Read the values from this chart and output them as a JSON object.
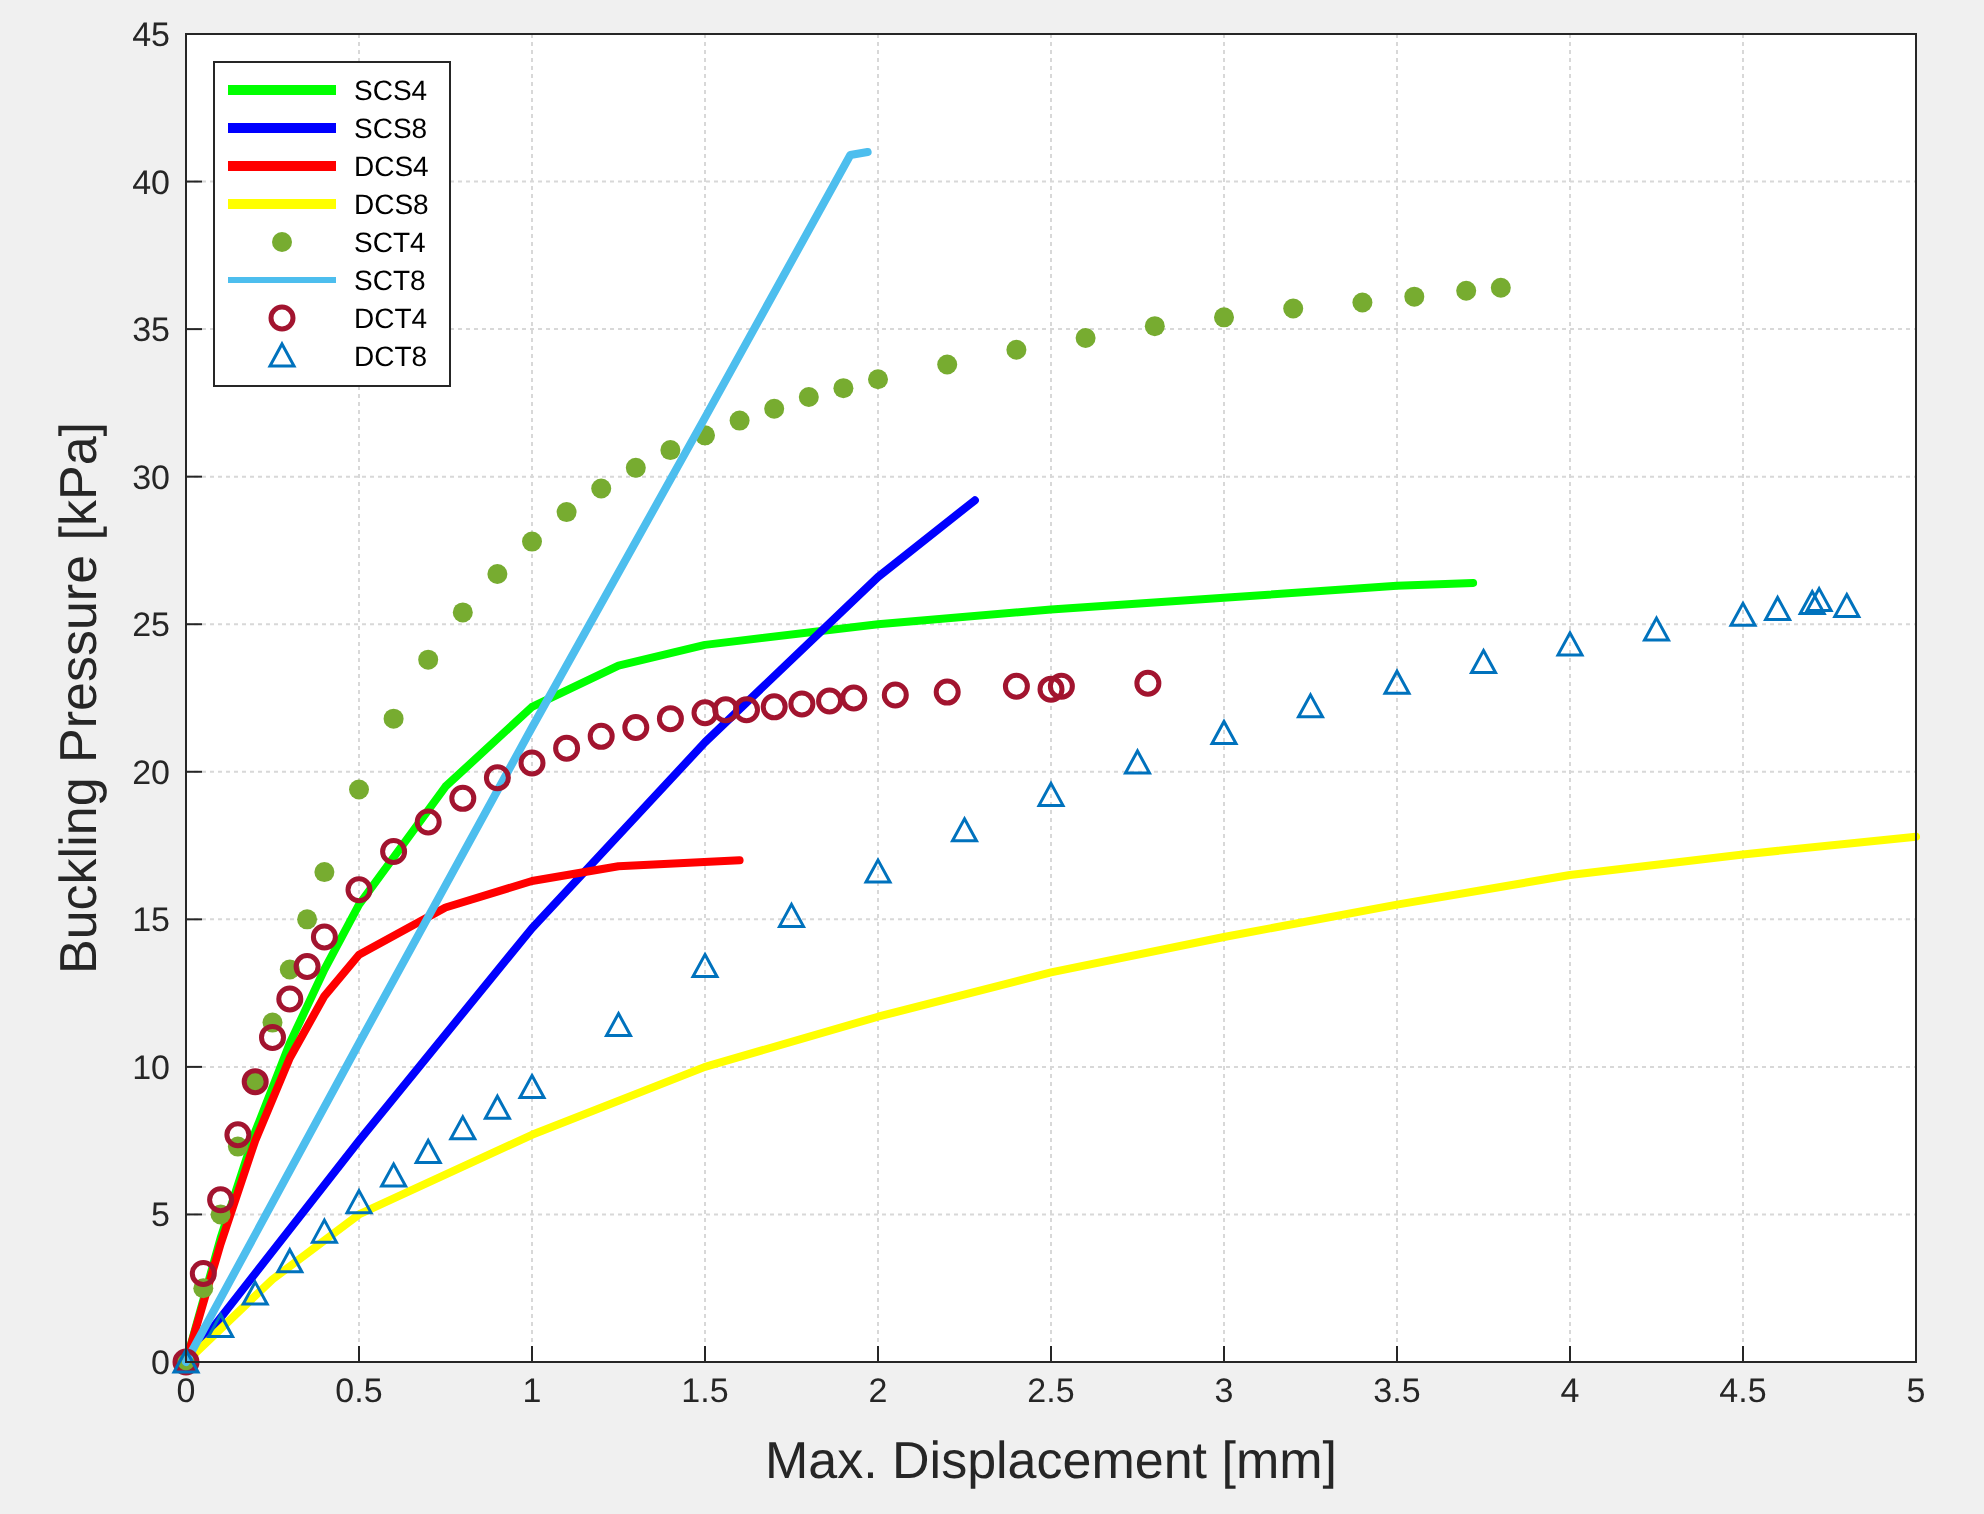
{
  "chart_data": {
    "type": "line",
    "xlabel": "Max. Displacement [mm]",
    "ylabel": "Buckling Pressure [kPa]",
    "xlim": [
      0,
      5
    ],
    "ylim": [
      0,
      45
    ],
    "xticks": [
      0,
      0.5,
      1,
      1.5,
      2,
      2.5,
      3,
      3.5,
      4,
      4.5,
      5
    ],
    "yticks": [
      0,
      5,
      10,
      15,
      20,
      25,
      30,
      35,
      40,
      45
    ],
    "grid": true,
    "legend": "top left",
    "line_style": "solid",
    "series": [
      {
        "name": "SCS4",
        "color": "#00ff00",
        "marker": "none",
        "x": [
          0,
          0.1,
          0.2,
          0.3,
          0.4,
          0.5,
          0.75,
          1,
          1.25,
          1.5,
          2,
          2.5,
          3,
          3.5,
          3.72
        ],
        "values": [
          0,
          4.2,
          7.8,
          10.8,
          13.3,
          15.5,
          19.5,
          22.2,
          23.6,
          24.3,
          25,
          25.5,
          25.9,
          26.3,
          26.4
        ]
      },
      {
        "name": "SCS8",
        "color": "#0000ff",
        "marker": "none",
        "x": [
          0,
          0.5,
          1,
          1.5,
          2,
          2.28
        ],
        "values": [
          0,
          7.5,
          14.7,
          21,
          26.6,
          29.2
        ]
      },
      {
        "name": "DCS4",
        "color": "#ff0000",
        "marker": "none",
        "x": [
          0,
          0.1,
          0.2,
          0.3,
          0.4,
          0.5,
          0.75,
          1,
          1.25,
          1.6
        ],
        "values": [
          0,
          4,
          7.5,
          10.3,
          12.4,
          13.8,
          15.4,
          16.3,
          16.8,
          17
        ]
      },
      {
        "name": "DCS8",
        "color": "#ffff00",
        "marker": "none",
        "x": [
          0,
          0.25,
          0.5,
          1,
          1.5,
          2,
          2.5,
          3,
          3.5,
          4,
          4.5,
          5
        ],
        "values": [
          0,
          2.8,
          5,
          7.7,
          10,
          11.7,
          13.2,
          14.4,
          15.5,
          16.5,
          17.2,
          17.8
        ]
      },
      {
        "name": "SCT4",
        "type": "scatter",
        "color": "#77ac30",
        "marker": "circle",
        "x": [
          0,
          0.05,
          0.1,
          0.15,
          0.2,
          0.25,
          0.3,
          0.35,
          0.4,
          0.5,
          0.6,
          0.7,
          0.8,
          0.9,
          1,
          1.1,
          1.2,
          1.3,
          1.4,
          1.5,
          1.6,
          1.7,
          1.8,
          1.9,
          2,
          2.2,
          2.4,
          2.6,
          2.8,
          3,
          3.2,
          3.4,
          3.55,
          3.7,
          3.8
        ],
        "values": [
          0,
          2.5,
          5,
          7.3,
          9.5,
          11.5,
          13.3,
          15,
          16.6,
          19.4,
          21.8,
          23.8,
          25.4,
          26.7,
          27.8,
          28.8,
          29.6,
          30.3,
          30.9,
          31.4,
          31.9,
          32.3,
          32.7,
          33,
          33.3,
          33.8,
          34.3,
          34.7,
          35.1,
          35.4,
          35.7,
          35.9,
          36.1,
          36.3,
          36.4
        ]
      },
      {
        "name": "SCT8",
        "color": "#4dbeee",
        "marker": "none",
        "x": [
          0,
          0.5,
          1,
          1.5,
          1.92,
          1.97
        ],
        "values": [
          0,
          10.8,
          21.5,
          32,
          40.9,
          41
        ]
      },
      {
        "name": "DCT4",
        "type": "scatter",
        "color": "#a2142f",
        "marker": "circle_open",
        "x": [
          0,
          0.05,
          0.1,
          0.15,
          0.2,
          0.25,
          0.3,
          0.35,
          0.4,
          0.5,
          0.6,
          0.7,
          0.8,
          0.9,
          1,
          1.1,
          1.2,
          1.3,
          1.4,
          1.5,
          1.56,
          1.62,
          1.7,
          1.78,
          1.86,
          1.93,
          2.05,
          2.2,
          2.4,
          2.5,
          2.53,
          2.78
        ],
        "values": [
          0,
          3,
          5.5,
          7.7,
          9.5,
          11,
          12.3,
          13.4,
          14.4,
          16,
          17.3,
          18.3,
          19.1,
          19.8,
          20.3,
          20.8,
          21.2,
          21.5,
          21.8,
          22,
          22.1,
          22.1,
          22.2,
          22.3,
          22.4,
          22.5,
          22.6,
          22.7,
          22.9,
          22.8,
          22.9,
          23
        ]
      },
      {
        "name": "DCT8",
        "type": "scatter",
        "color": "#0072bd",
        "marker": "triangle",
        "x": [
          0,
          0.1,
          0.2,
          0.3,
          0.4,
          0.5,
          0.6,
          0.7,
          0.8,
          0.9,
          1,
          1.25,
          1.5,
          1.75,
          2,
          2.25,
          2.5,
          2.75,
          3,
          3.25,
          3.5,
          3.75,
          4,
          4.25,
          4.5,
          4.6,
          4.7,
          4.72,
          4.8
        ],
        "values": [
          0,
          1.2,
          2.3,
          3.4,
          4.4,
          5.4,
          6.3,
          7.1,
          7.9,
          8.6,
          9.3,
          11.4,
          13.4,
          15.1,
          16.6,
          18,
          19.2,
          20.3,
          21.3,
          22.2,
          23,
          23.7,
          24.3,
          24.8,
          25.3,
          25.5,
          25.7,
          25.8,
          25.6
        ]
      }
    ]
  }
}
